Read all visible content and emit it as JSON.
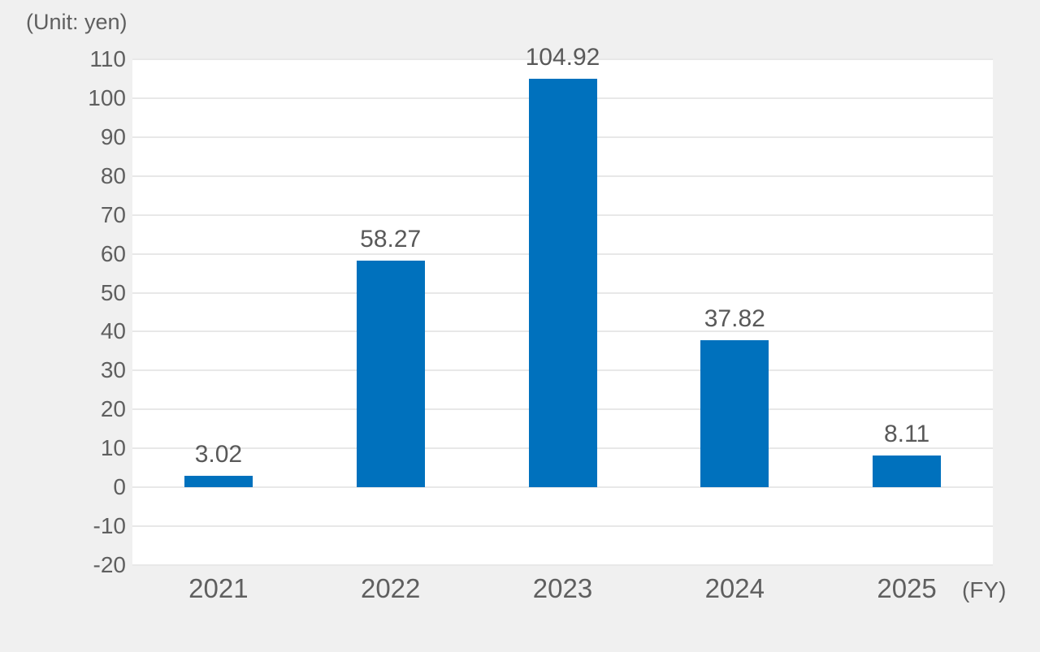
{
  "chart_data": {
    "type": "bar",
    "title": "(Unit: yen)",
    "unit_label": "(Unit: yen)",
    "x_axis_suffix": "(FY)",
    "categories": [
      "2021",
      "2022",
      "2023",
      "2024",
      "2025"
    ],
    "values": [
      3.02,
      58.27,
      104.92,
      37.82,
      8.11
    ],
    "value_labels": [
      "3.02",
      "58.27",
      "104.92",
      "37.82",
      "8.11"
    ],
    "xlabel": "",
    "ylabel": "",
    "ylim": [
      -20,
      110
    ],
    "ytick_step": 10,
    "ytick_labels": [
      "110",
      "100",
      "90",
      "80",
      "70",
      "60",
      "50",
      "40",
      "30",
      "20",
      "10",
      "0",
      "-10",
      "-20"
    ],
    "grid": true,
    "legend": "none",
    "colors": {
      "bar": "#0071bd",
      "page_background": "#f0f0f0",
      "plot_background": "#ffffff",
      "gridline": "#e8e8e8",
      "text": "#5f5f5f"
    }
  }
}
